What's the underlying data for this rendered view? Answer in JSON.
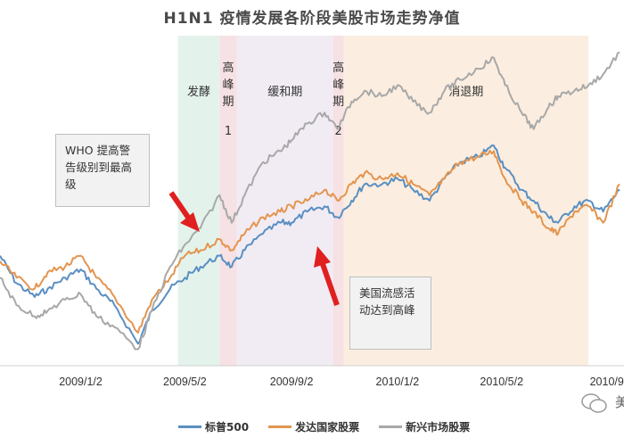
{
  "title": "H1N1 疫情发展各阶段美股市场走势净值",
  "phases": [
    {
      "label_lines": [
        "发酵"
      ],
      "start": "2009-04-24",
      "end": "2009-06-11",
      "color": "#e3f3ec"
    },
    {
      "label_lines": [
        "高",
        "峰",
        "期",
        "1"
      ],
      "start": "2009-06-11",
      "end": "2009-07-01",
      "color": "#f6e1e4"
    },
    {
      "label_lines": [
        "缓和期"
      ],
      "start": "2009-07-01",
      "end": "2009-10-20",
      "color": "#f1ecf4"
    },
    {
      "label_lines": [
        "高",
        "峰",
        "期",
        "2"
      ],
      "start": "2009-10-20",
      "end": "2009-11-01",
      "color": "#f6e1e4"
    },
    {
      "label_lines": [
        "消退期"
      ],
      "start": "2009-11-01",
      "end": "2010-08-10",
      "color": "#fbeee0"
    }
  ],
  "callouts": {
    "who": "WHO 提高警告级别到最高级",
    "us_peak": "美国流感活动达到高峰"
  },
  "watermark": {
    "icon": "wechat-icon",
    "text": "美"
  },
  "chart_data": {
    "type": "line",
    "title": "H1N1 疫情发展各阶段美股市场走势净值",
    "x_ticks": [
      "2009/1/2",
      "2009/5/2",
      "2009/9/2",
      "2010/1/2",
      "2010/5/2",
      "2010/9/"
    ],
    "x_range": [
      "2008-10-01",
      "2010-09-20"
    ],
    "ylim": [
      0.6,
      1.8
    ],
    "grid": false,
    "legend_position": "bottom",
    "x": [
      "2008-10-01",
      "2008-10-20",
      "2008-11-10",
      "2008-11-25",
      "2008-12-15",
      "2009-01-02",
      "2009-01-20",
      "2009-02-10",
      "2009-03-09",
      "2009-03-25",
      "2009-04-15",
      "2009-05-02",
      "2009-05-20",
      "2009-06-11",
      "2009-06-25",
      "2009-07-10",
      "2009-07-31",
      "2009-08-20",
      "2009-09-02",
      "2009-09-20",
      "2009-10-10",
      "2009-10-25",
      "2009-11-10",
      "2009-11-25",
      "2009-12-15",
      "2010-01-02",
      "2010-01-20",
      "2010-02-08",
      "2010-02-25",
      "2010-03-15",
      "2010-04-05",
      "2010-04-23",
      "2010-05-06",
      "2010-05-25",
      "2010-06-08",
      "2010-06-25",
      "2010-07-06",
      "2010-07-25",
      "2010-08-10",
      "2010-08-27",
      "2010-09-15"
    ],
    "series": [
      {
        "name": "标普500",
        "color": "#5a8fc2",
        "values": [
          1.0,
          0.9,
          0.85,
          0.88,
          0.92,
          0.95,
          0.88,
          0.82,
          0.68,
          0.8,
          0.88,
          0.92,
          0.96,
          1.0,
          0.96,
          1.02,
          1.08,
          1.12,
          1.12,
          1.16,
          1.18,
          1.14,
          1.2,
          1.26,
          1.26,
          1.28,
          1.24,
          1.2,
          1.28,
          1.34,
          1.36,
          1.4,
          1.32,
          1.24,
          1.2,
          1.14,
          1.12,
          1.18,
          1.2,
          1.16,
          1.24
        ]
      },
      {
        "name": "发达国家股票",
        "color": "#e39550",
        "values": [
          0.98,
          0.92,
          0.88,
          0.94,
          0.96,
          1.0,
          0.92,
          0.85,
          0.72,
          0.84,
          0.92,
          1.0,
          1.02,
          1.06,
          1.02,
          1.08,
          1.14,
          1.16,
          1.18,
          1.2,
          1.24,
          1.2,
          1.26,
          1.3,
          1.28,
          1.3,
          1.26,
          1.22,
          1.28,
          1.34,
          1.36,
          1.38,
          1.28,
          1.2,
          1.16,
          1.1,
          1.08,
          1.16,
          1.18,
          1.12,
          1.26
        ]
      },
      {
        "name": "新兴市场股票",
        "color": "#a8a8a8",
        "values": [
          0.92,
          0.82,
          0.78,
          0.8,
          0.84,
          0.86,
          0.78,
          0.74,
          0.66,
          0.8,
          0.96,
          1.04,
          1.1,
          1.22,
          1.12,
          1.22,
          1.34,
          1.38,
          1.42,
          1.48,
          1.52,
          1.46,
          1.56,
          1.6,
          1.58,
          1.62,
          1.56,
          1.52,
          1.6,
          1.64,
          1.68,
          1.72,
          1.62,
          1.52,
          1.46,
          1.54,
          1.58,
          1.6,
          1.62,
          1.66,
          1.74
        ]
      }
    ]
  }
}
